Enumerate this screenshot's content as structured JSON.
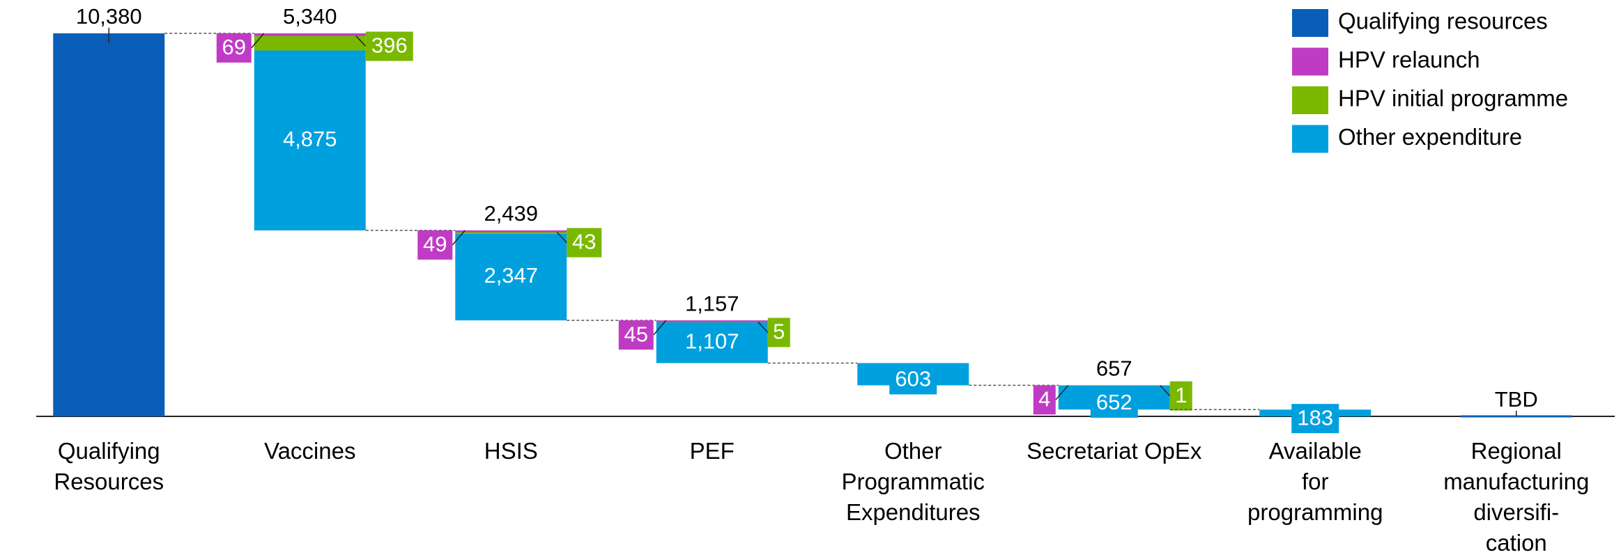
{
  "chart_data": {
    "type": "waterfall",
    "categories": [
      "Qualifying\nResources",
      "Vaccines",
      "HSIS",
      "PEF",
      "Other\nProgrammatic\nExpenditures",
      "Secretariat OpEx",
      "Available\nfor\nprogramming",
      "Regional\nmanufacturing\ndiversifi-\ncation"
    ],
    "measure": [
      "absolute",
      "relative",
      "relative",
      "relative",
      "relative",
      "relative",
      "absolute",
      "absolute"
    ],
    "series": [
      {
        "name": "Qualifying resources",
        "color": "#0a5eb8",
        "values": [
          10380,
          null,
          null,
          null,
          null,
          null,
          null,
          null
        ],
        "value_labels": [
          "10,380",
          null,
          null,
          null,
          null,
          null,
          null,
          null
        ]
      },
      {
        "name": "HPV relaunch",
        "color": "#c03bc4",
        "values": [
          null,
          69,
          49,
          45,
          null,
          4,
          null,
          null
        ],
        "value_labels": [
          null,
          "69",
          "49",
          "45",
          null,
          "4",
          null,
          null
        ]
      },
      {
        "name": "HPV initial programme",
        "color": "#7ab800",
        "values": [
          null,
          396,
          43,
          5,
          null,
          1,
          null,
          null
        ],
        "value_labels": [
          null,
          "396",
          "43",
          "5",
          null,
          "1",
          null,
          null
        ]
      },
      {
        "name": "Other expenditure",
        "color": "#00a0df",
        "values": [
          null,
          4875,
          2347,
          1107,
          603,
          652,
          183,
          null
        ],
        "value_labels": [
          null,
          "4,875",
          "2,347",
          "1,107",
          "603",
          "652",
          "183",
          null
        ]
      }
    ],
    "total_labels": [
      null,
      "5,340",
      "2,439",
      "1,157",
      null,
      "657",
      null,
      "TBD"
    ],
    "ylim": [
      0,
      11000
    ],
    "legend": "top-right"
  }
}
